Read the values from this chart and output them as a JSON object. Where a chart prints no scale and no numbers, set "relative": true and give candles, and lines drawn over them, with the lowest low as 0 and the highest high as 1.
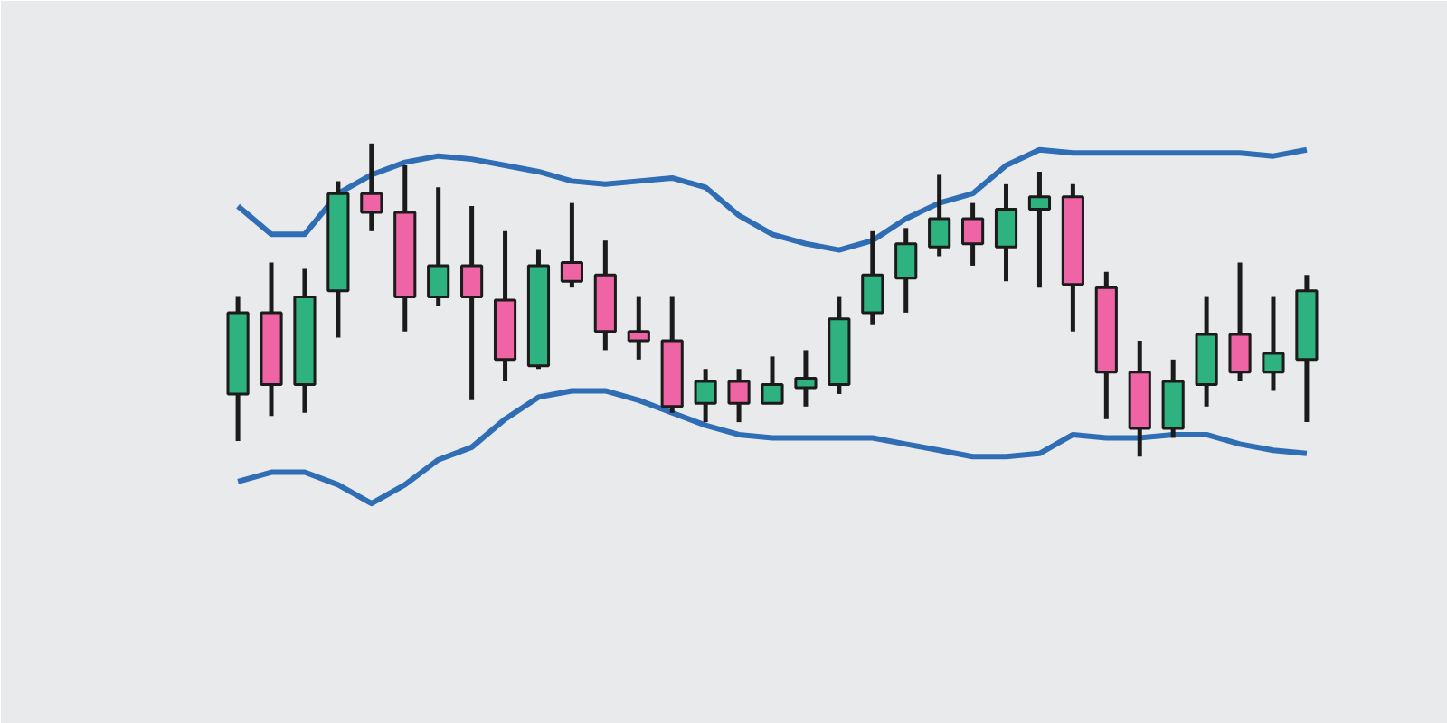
{
  "chart_data": {
    "type": "candlestick",
    "relative": true,
    "categories": [
      null,
      null,
      null,
      null,
      null,
      null,
      null,
      null,
      null,
      null,
      null,
      null,
      null,
      null,
      null,
      null,
      null,
      null,
      null,
      null,
      null,
      null,
      null,
      null,
      null,
      null,
      null,
      null,
      null,
      null,
      null,
      null,
      null
    ],
    "ohlc": [
      [
        0.2,
        0.51,
        0.05,
        0.46
      ],
      [
        0.46,
        0.62,
        0.13,
        0.23
      ],
      [
        0.23,
        0.6,
        0.14,
        0.51
      ],
      [
        0.53,
        0.88,
        0.38,
        0.84
      ],
      [
        0.84,
        1.0,
        0.72,
        0.78
      ],
      [
        0.78,
        0.93,
        0.4,
        0.51
      ],
      [
        0.51,
        0.86,
        0.48,
        0.61
      ],
      [
        0.61,
        0.8,
        0.18,
        0.51
      ],
      [
        0.5,
        0.72,
        0.24,
        0.31
      ],
      [
        0.29,
        0.66,
        0.28,
        0.61
      ],
      [
        0.62,
        0.81,
        0.54,
        0.56
      ],
      [
        0.58,
        0.69,
        0.34,
        0.4
      ],
      [
        0.4,
        0.51,
        0.31,
        0.37
      ],
      [
        0.37,
        0.51,
        0.14,
        0.16
      ],
      [
        0.17,
        0.28,
        0.11,
        0.24
      ],
      [
        0.24,
        0.28,
        0.11,
        0.17
      ],
      [
        0.17,
        0.32,
        0.17,
        0.23
      ],
      [
        0.22,
        0.34,
        0.16,
        0.25
      ],
      [
        0.23,
        0.51,
        0.2,
        0.44
      ],
      [
        0.46,
        0.72,
        0.42,
        0.58
      ],
      [
        0.57,
        0.73,
        0.46,
        0.68
      ],
      [
        0.67,
        0.9,
        0.64,
        0.76
      ],
      [
        0.76,
        0.81,
        0.61,
        0.68
      ],
      [
        0.67,
        0.87,
        0.56,
        0.79
      ],
      [
        0.79,
        0.91,
        0.54,
        0.83
      ],
      [
        0.83,
        0.87,
        0.4,
        0.55
      ],
      [
        0.54,
        0.59,
        0.12,
        0.27
      ],
      [
        0.27,
        0.37,
        0.0,
        0.09
      ],
      [
        0.09,
        0.31,
        0.06,
        0.24
      ],
      [
        0.23,
        0.51,
        0.16,
        0.39
      ],
      [
        0.39,
        0.62,
        0.24,
        0.27
      ],
      [
        0.27,
        0.51,
        0.21,
        0.33
      ],
      [
        0.31,
        0.58,
        0.11,
        0.53
      ]
    ],
    "colors": [
      "#2eb27f",
      "#ee64a4",
      "#2eb27f",
      "#2eb27f",
      "#ee64a4",
      "#ee64a4",
      "#2eb27f",
      "#ee64a4",
      "#ee64a4",
      "#2eb27f",
      "#ee64a4",
      "#ee64a4",
      "#ee64a4",
      "#ee64a4",
      "#2eb27f",
      "#ee64a4",
      "#2eb27f",
      "#2eb27f",
      "#2eb27f",
      "#2eb27f",
      "#2eb27f",
      "#2eb27f",
      "#ee64a4",
      "#2eb27f",
      "#2eb27f",
      "#ee64a4",
      "#ee64a4",
      "#ee64a4",
      "#2eb27f",
      "#2eb27f",
      "#ee64a4",
      "#2eb27f",
      "#2eb27f"
    ],
    "series": [
      {
        "type": "line",
        "color": "#2f6db5",
        "values": [
          0.8,
          0.71,
          0.71,
          0.84,
          0.9,
          0.94,
          0.96,
          0.95,
          0.93,
          0.91,
          0.88,
          0.87,
          0.88,
          0.89,
          0.86,
          0.77,
          0.71,
          0.68,
          0.66,
          0.69,
          0.76,
          0.81,
          0.84,
          0.93,
          0.98,
          0.97,
          0.97,
          0.97,
          0.97,
          0.97,
          0.97,
          0.96,
          0.98
        ]
      },
      {
        "type": "line",
        "color": "#2f6db5",
        "values": [
          -0.08,
          -0.05,
          -0.05,
          -0.09,
          -0.15,
          -0.09,
          -0.01,
          0.03,
          0.12,
          0.19,
          0.21,
          0.21,
          0.18,
          0.14,
          0.1,
          0.07,
          0.06,
          0.06,
          0.06,
          0.06,
          0.04,
          0.02,
          0.0,
          0.0,
          0.01,
          0.07,
          0.06,
          0.06,
          0.07,
          0.07,
          0.04,
          0.02,
          0.01
        ]
      }
    ]
  }
}
